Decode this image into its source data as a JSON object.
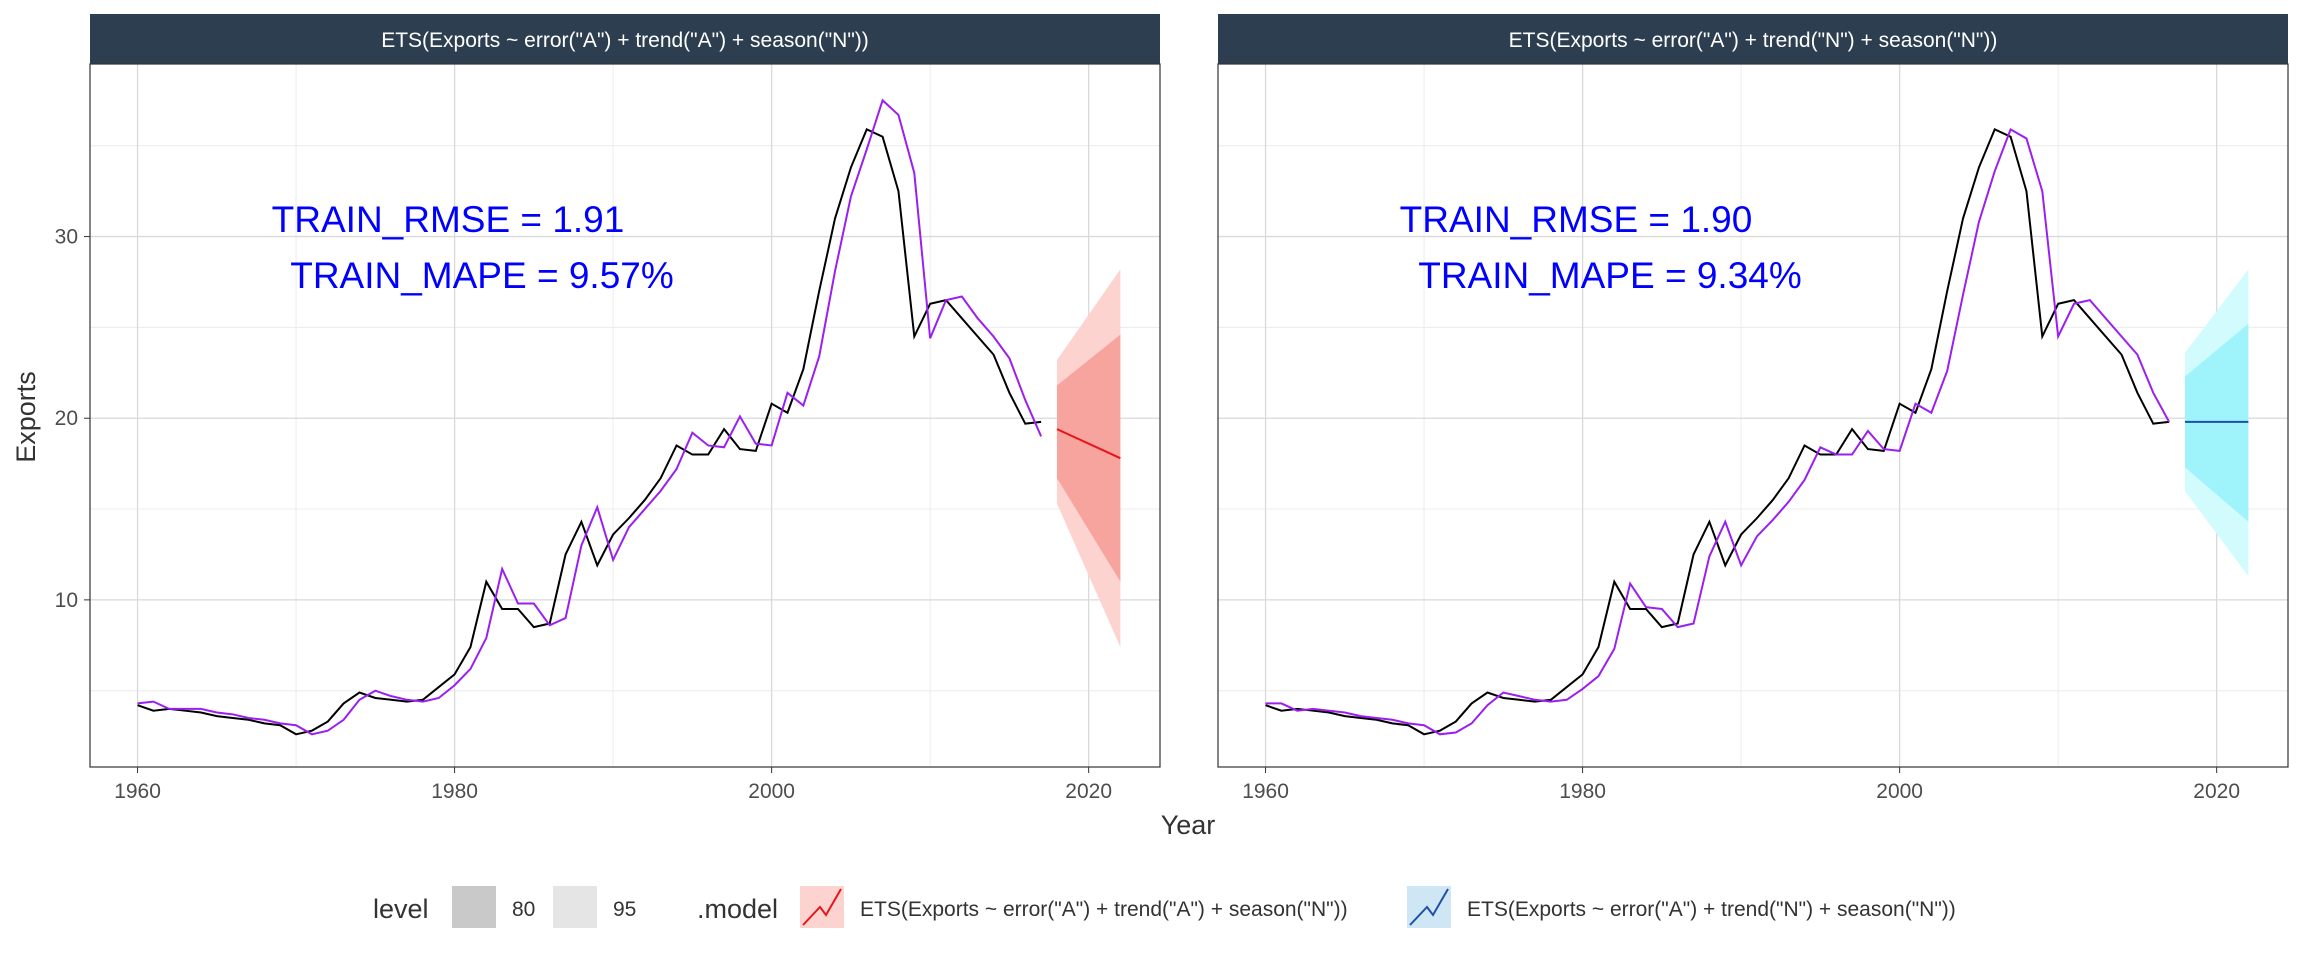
{
  "chart_data": {
    "type": "line",
    "xlabel": "Year",
    "ylabel": "Exports",
    "xlim": [
      1957,
      2024.5
    ],
    "ylim": [
      0.8,
      39.5
    ],
    "x_ticks": [
      1960,
      1980,
      2000,
      2020
    ],
    "y_ticks": [
      10,
      20,
      30
    ],
    "grid": true,
    "legend": {
      "position": "bottom",
      "level_title": "level",
      "levels": [
        "80",
        "95"
      ],
      "model_title": ".model",
      "models": [
        "ETS(Exports ~ error(\"A\") + trend(\"A\") + season(\"N\"))",
        "ETS(Exports ~ error(\"A\") + trend(\"N\") + season(\"N\"))"
      ]
    },
    "years": [
      1960,
      1961,
      1962,
      1963,
      1964,
      1965,
      1966,
      1967,
      1968,
      1969,
      1970,
      1971,
      1972,
      1973,
      1974,
      1975,
      1976,
      1977,
      1978,
      1979,
      1980,
      1981,
      1982,
      1983,
      1984,
      1985,
      1986,
      1987,
      1988,
      1989,
      1990,
      1991,
      1992,
      1993,
      1994,
      1995,
      1996,
      1997,
      1998,
      1999,
      2000,
      2001,
      2002,
      2003,
      2004,
      2005,
      2006,
      2007,
      2008,
      2009,
      2010,
      2011,
      2012,
      2013,
      2014,
      2015,
      2016,
      2017
    ],
    "actual": [
      4.2,
      3.9,
      4.0,
      3.9,
      3.8,
      3.6,
      3.5,
      3.4,
      3.2,
      3.1,
      2.6,
      2.8,
      3.3,
      4.3,
      4.9,
      4.6,
      4.5,
      4.4,
      4.5,
      5.2,
      5.9,
      7.4,
      11.0,
      9.5,
      9.5,
      8.5,
      8.7,
      12.5,
      14.3,
      11.9,
      13.6,
      14.5,
      15.5,
      16.7,
      18.5,
      18.0,
      18.0,
      19.4,
      18.3,
      18.2,
      20.8,
      20.3,
      22.7,
      27.0,
      31.0,
      33.8,
      35.9,
      35.5,
      32.5,
      24.5,
      26.3,
      26.5,
      25.5,
      24.5,
      23.5,
      21.4,
      19.7,
      19.8
    ],
    "panels": [
      {
        "name": "ETS(Exports ~ error(\"A\") + trend(\"A\") + season(\"N\"))",
        "train_rmse": "TRAIN_RMSE = 1.91",
        "train_mape": "TRAIN_MAPE = 9.57%",
        "fitted": [
          4.3,
          4.4,
          4.0,
          4.0,
          4.0,
          3.8,
          3.7,
          3.5,
          3.4,
          3.2,
          3.1,
          2.6,
          2.8,
          3.4,
          4.5,
          5.0,
          4.7,
          4.5,
          4.4,
          4.6,
          5.3,
          6.2,
          7.9,
          11.7,
          9.8,
          9.8,
          8.6,
          9.0,
          13.0,
          15.1,
          12.2,
          14.0,
          15.0,
          16.0,
          17.2,
          19.2,
          18.5,
          18.4,
          20.1,
          18.6,
          18.5,
          21.4,
          20.7,
          23.4,
          28.1,
          32.2,
          34.8,
          37.5,
          36.7,
          33.5,
          24.4,
          26.5,
          26.7,
          25.5,
          24.5,
          23.3,
          21.0,
          19.0
        ],
        "forecast": {
          "color": "#e8141a",
          "band80": "#f7a39e",
          "band95": "#fdd3d0",
          "x": [
            2018,
            2022
          ],
          "mean": [
            19.4,
            17.8
          ],
          "lo80": [
            16.7,
            11.0
          ],
          "hi80": [
            21.8,
            24.6
          ],
          "lo95": [
            15.3,
            7.4
          ],
          "hi95": [
            23.2,
            28.2
          ]
        }
      },
      {
        "name": "ETS(Exports ~ error(\"A\") + trend(\"N\") + season(\"N\"))",
        "train_rmse": "TRAIN_RMSE = 1.90",
        "train_mape": "TRAIN_MAPE = 9.34%",
        "fitted": [
          4.3,
          4.3,
          3.9,
          4.0,
          3.9,
          3.8,
          3.6,
          3.5,
          3.4,
          3.2,
          3.1,
          2.6,
          2.7,
          3.2,
          4.2,
          4.9,
          4.7,
          4.5,
          4.4,
          4.5,
          5.1,
          5.8,
          7.3,
          10.9,
          9.6,
          9.5,
          8.5,
          8.7,
          12.4,
          14.3,
          11.9,
          13.5,
          14.4,
          15.4,
          16.6,
          18.4,
          18.0,
          18.0,
          19.3,
          18.3,
          18.2,
          20.8,
          20.3,
          22.6,
          26.8,
          30.8,
          33.6,
          35.9,
          35.4,
          32.5,
          24.5,
          26.3,
          26.5,
          25.5,
          24.5,
          23.5,
          21.4,
          19.8
        ],
        "forecast": {
          "color": "#1f4fa8",
          "band80": "#9ff4fb",
          "band95": "#d2fbfe",
          "x": [
            2018,
            2022
          ],
          "mean": [
            19.8,
            19.8
          ],
          "lo80": [
            17.3,
            14.3
          ],
          "hi80": [
            22.3,
            25.2
          ],
          "lo95": [
            16.0,
            11.3
          ],
          "hi95": [
            23.6,
            28.2
          ]
        }
      }
    ],
    "actual_color": "#000000",
    "fitted_color": "#9a1ff0"
  }
}
